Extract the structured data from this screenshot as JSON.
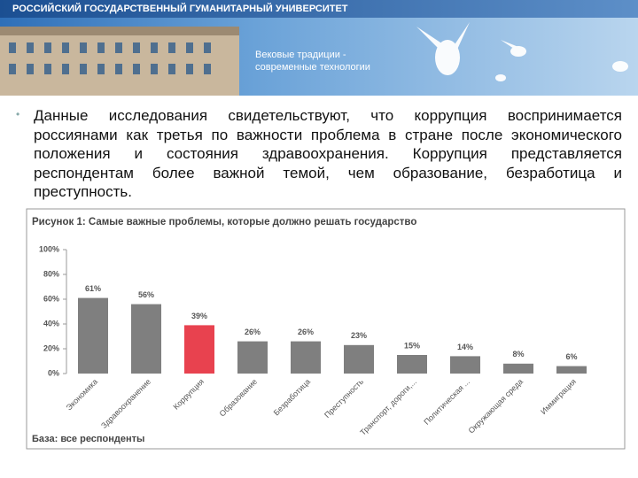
{
  "header": {
    "university": "РОССИЙСКИЙ ГОСУДАРСТВЕННЫЙ ГУМАНИТАРНЫЙ УНИВЕРСИТЕТ",
    "slogan_1": "Вековые традиции -",
    "slogan_2": "современные технологии"
  },
  "body": {
    "text": "Данные исследования свидетельствуют, что коррупция воспринимается россиянами как третья по важности проблема в стране после экономического положения и состояния здравоохранения. Коррупция представляется респондентам более важной темой, чем образование, безработица и преступность."
  },
  "chart_data": {
    "type": "bar",
    "title": "Рисунок 1: Самые важные проблемы, которые должно решать государство",
    "categories": [
      "Экономика",
      "Здравоохранение",
      "Коррупция",
      "Образование",
      "Безработица",
      "Преступность",
      "Транспорт, дороги,...",
      "Политическая ...",
      "Окружающая среда",
      "Иммиграция"
    ],
    "values": [
      61,
      56,
      39,
      26,
      26,
      23,
      15,
      14,
      8,
      6
    ],
    "value_labels": [
      "61%",
      "56%",
      "39%",
      "26%",
      "26%",
      "23%",
      "15%",
      "14%",
      "8%",
      "6%"
    ],
    "colors": [
      "#7f7f7f",
      "#7f7f7f",
      "#e8424f",
      "#7f7f7f",
      "#7f7f7f",
      "#7f7f7f",
      "#7f7f7f",
      "#7f7f7f",
      "#7f7f7f",
      "#7f7f7f"
    ],
    "ylim": [
      0,
      100
    ],
    "yticks": [
      {
        "value": 0,
        "label": "0%"
      },
      {
        "value": 20,
        "label": "20%"
      },
      {
        "value": 40,
        "label": "40%"
      },
      {
        "value": 60,
        "label": "60%"
      },
      {
        "value": 80,
        "label": "80%"
      },
      {
        "value": 100,
        "label": "100%"
      }
    ],
    "grid": false,
    "footnote": "База: все респонденты"
  }
}
